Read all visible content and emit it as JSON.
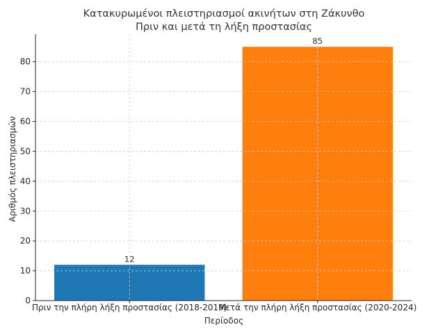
{
  "chart_data": {
    "type": "bar",
    "title": "Κατακυρωμένοι πλειστηριασμοί ακινήτων στη Ζάκυνθο",
    "subtitle": "Πριν και μετά τη λήξη προστασίας",
    "xlabel": "Περίοδος",
    "ylabel": "Αριθμός πλειστηριασμών",
    "categories": [
      "Πριν την πλήρη λήξη προστασίας (2018-2019)",
      "Μετά την πλήρη λήξη προστασίας (2020-2024)"
    ],
    "values": [
      12,
      85
    ],
    "data_labels": [
      "12",
      "85"
    ],
    "colors": [
      "#1f77b4",
      "#ff7f0e"
    ],
    "ylim": [
      0,
      89.25
    ],
    "yticks": [
      0,
      10,
      20,
      30,
      40,
      50,
      60,
      70,
      80
    ],
    "ytick_labels": [
      "0",
      "10",
      "20",
      "30",
      "40",
      "50",
      "60",
      "70",
      "80"
    ],
    "grid": true,
    "grid_color": "#cccccc",
    "axis_color": "#262626"
  }
}
